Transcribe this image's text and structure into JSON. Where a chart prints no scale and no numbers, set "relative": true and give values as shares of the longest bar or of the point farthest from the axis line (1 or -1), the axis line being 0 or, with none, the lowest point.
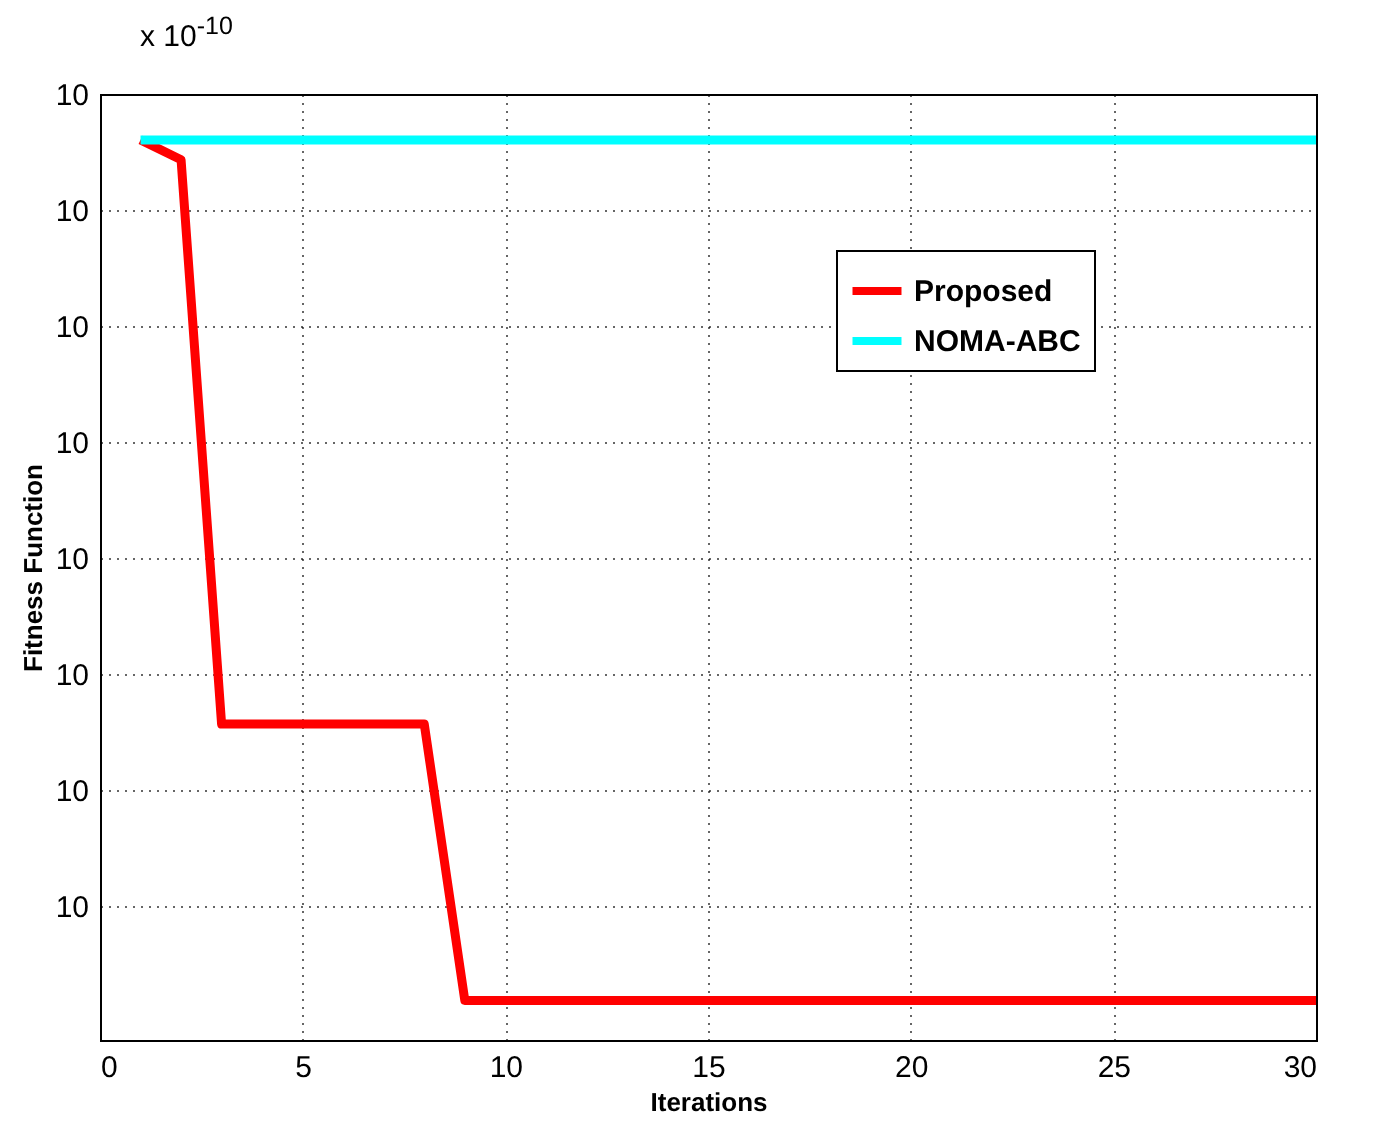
{
  "chart_data": {
    "type": "line",
    "xlabel": "Iterations",
    "ylabel": "Fitness Function",
    "relative": true,
    "ylim": [
      0,
      1.051
    ],
    "annotations": [
      "x 10$^{-10}$",
      "10",
      "10",
      "10",
      "10",
      "10",
      "10",
      "10",
      "10"
    ],
    "x": [
      1,
      2,
      3,
      4,
      5,
      6,
      7,
      8,
      9,
      10,
      11,
      12,
      13,
      14,
      15,
      16,
      17,
      18,
      19,
      20,
      21,
      22,
      23,
      24,
      25,
      26,
      27,
      28,
      29,
      30
    ],
    "xlim": [
      0,
      30
    ],
    "xticks": [
      0,
      5,
      10,
      15,
      20,
      25,
      30
    ],
    "series": [
      {
        "name": "Proposed",
        "color": "#ff0000",
        "values": [
          1.0,
          0.978,
          0.351,
          0.351,
          0.351,
          0.351,
          0.351,
          0.351,
          0.044,
          0.044,
          0.044,
          0.044,
          0.044,
          0.044,
          0.044,
          0.044,
          0.044,
          0.044,
          0.044,
          0.044,
          0.044,
          0.044,
          0.044,
          0.044,
          0.044,
          0.044,
          0.044,
          0.044,
          0.044,
          0.044
        ]
      },
      {
        "name": "NOMA-ABC",
        "color": "#00ffff",
        "values": [
          1.0,
          1.0,
          1.0,
          1.0,
          1.0,
          1.0,
          1.0,
          1.0,
          1.0,
          1.0,
          1.0,
          1.0,
          1.0,
          1.0,
          1.0,
          1.0,
          1.0,
          1.0,
          1.0,
          1.0,
          1.0,
          1.0,
          1.0,
          1.0,
          1.0,
          1.0,
          1.0,
          1.0,
          1.0,
          1.0
        ]
      }
    ],
    "grid": true,
    "legend": "top right",
    "line_style": "solid"
  }
}
